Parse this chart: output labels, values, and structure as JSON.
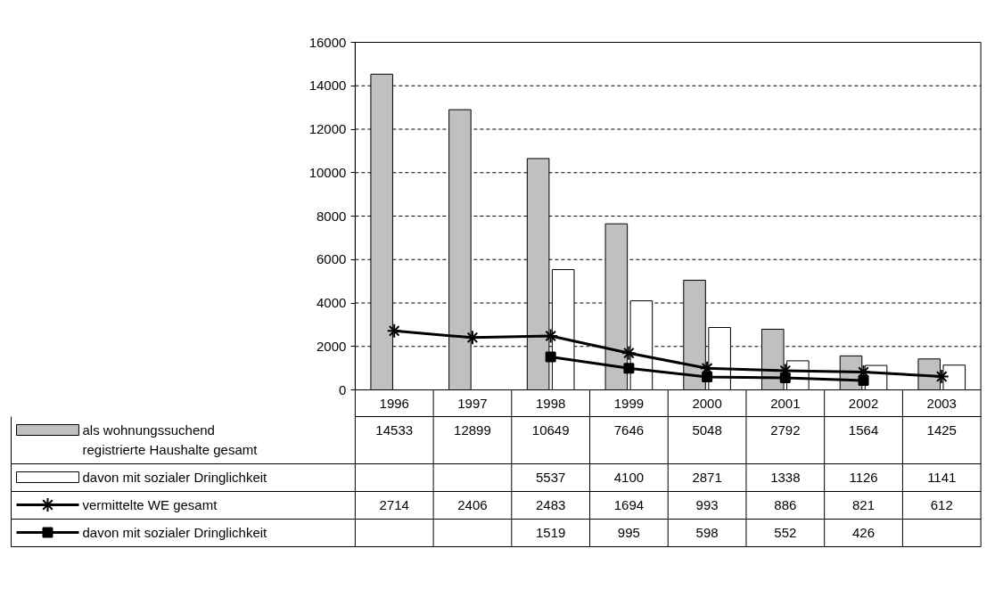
{
  "chart_data": {
    "type": "bar",
    "categories": [
      "1996",
      "1997",
      "1998",
      "1999",
      "2000",
      "2001",
      "2002",
      "2003"
    ],
    "series": [
      {
        "name": "als wohnungssuchend\nregistrierte Haushalte gesamt",
        "color": "#c0c0c0",
        "values": [
          14533,
          12899,
          10649,
          7646,
          5048,
          2792,
          1564,
          1425
        ]
      },
      {
        "name": "davon mit sozialer Dringlichkeit",
        "type": "bar",
        "color": "#ffffff",
        "values": [
          null,
          null,
          5537,
          4100,
          2871,
          1338,
          1126,
          1141
        ]
      },
      {
        "name": "vermittelte WE gesamt",
        "type": "line",
        "marker": "cross",
        "color": "#000000",
        "values": [
          2714,
          2406,
          2483,
          1694,
          993,
          886,
          821,
          612
        ]
      },
      {
        "name": "davon mit sozialer Dringlichkeit",
        "type": "line",
        "marker": "square",
        "color": "#000000",
        "values": [
          null,
          null,
          1519,
          995,
          598,
          552,
          426,
          null
        ]
      }
    ],
    "ylim": [
      0,
      16000
    ],
    "yticks": [
      0,
      2000,
      4000,
      6000,
      8000,
      10000,
      12000,
      14000,
      16000
    ],
    "grid": "y",
    "legend": "bottom",
    "data_labels": true,
    "line_style": "solid"
  }
}
